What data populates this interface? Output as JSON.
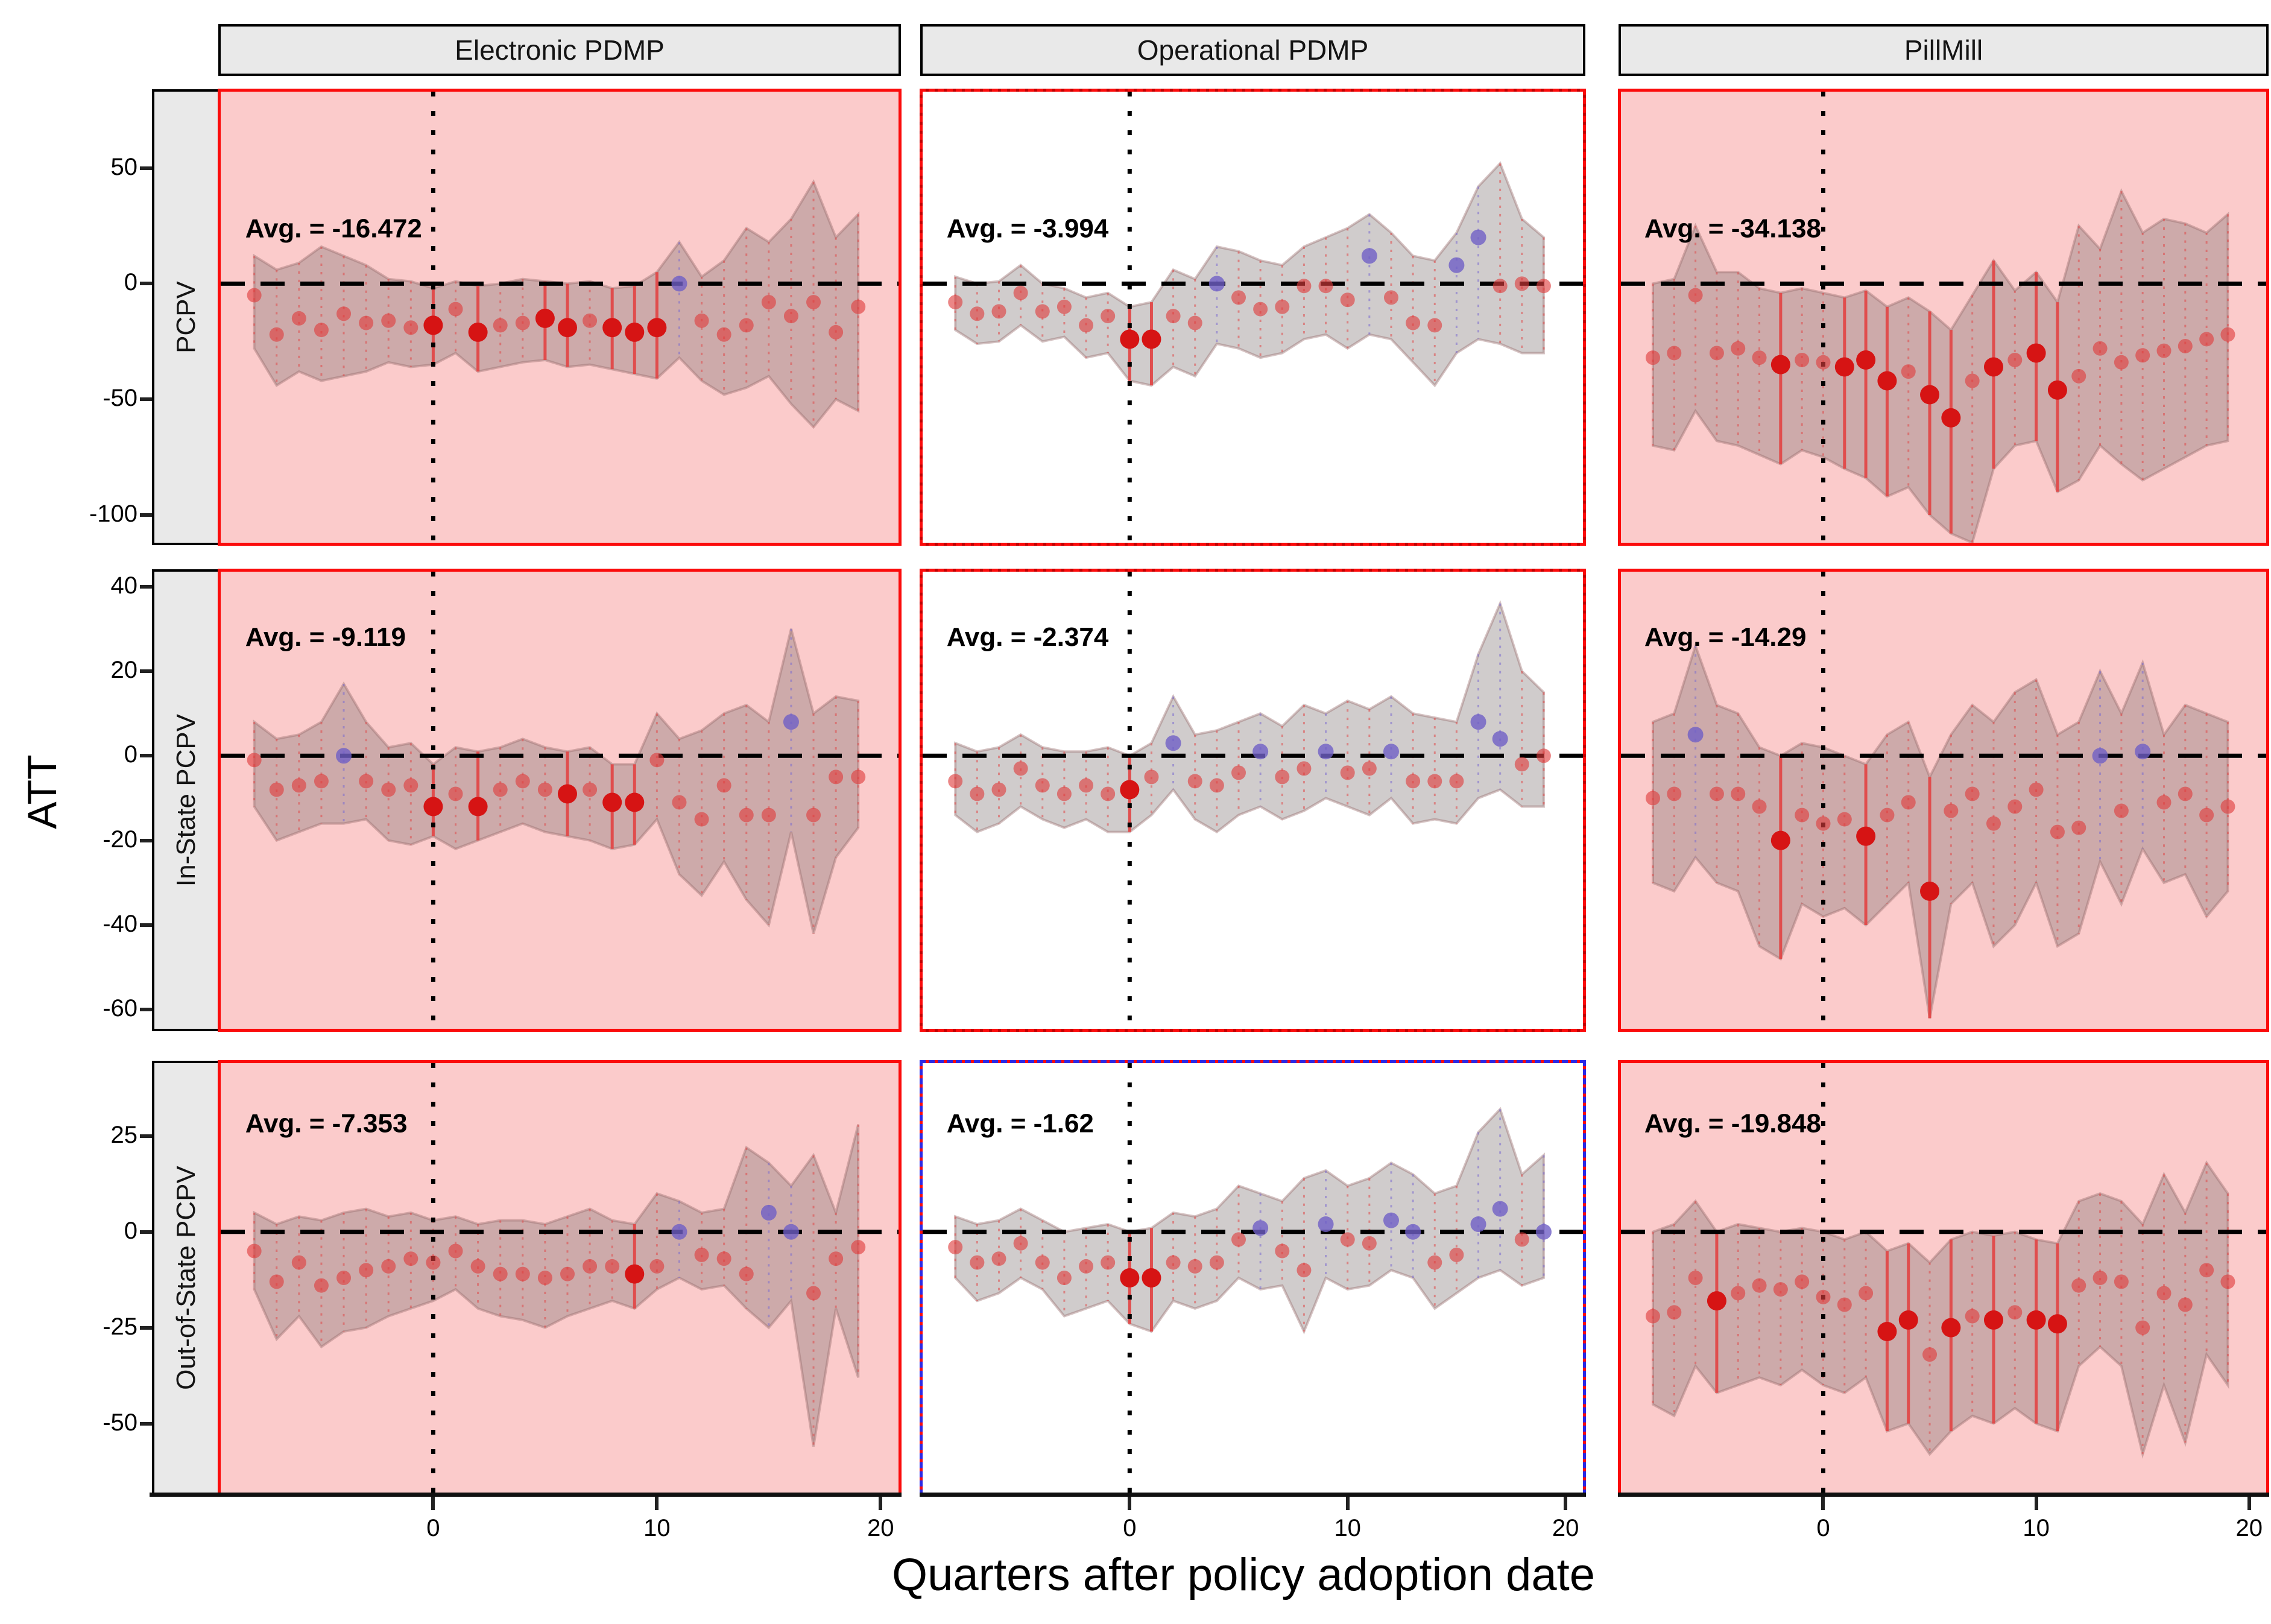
{
  "titles": {
    "y_axis": "ATT",
    "x_axis": "Quarters after policy adoption date"
  },
  "columns": [
    "Electronic PDMP",
    "Operational PDMP",
    "PillMill"
  ],
  "rows": [
    {
      "label": "PCPV",
      "ticks": [
        50,
        0,
        -50,
        -100
      ],
      "ylim": [
        -112,
        83
      ],
      "avg_y": 20
    },
    {
      "label": "In-State PCPV",
      "ticks": [
        40,
        20,
        0,
        -20,
        -40,
        -60
      ],
      "ylim": [
        -64.5,
        43.5
      ],
      "avg_y": 26
    },
    {
      "label": "Out-of-State PCPV",
      "ticks": [
        25,
        0,
        -25,
        -50
      ],
      "ylim": [
        -68,
        44
      ],
      "avg_y": 26
    }
  ],
  "x_ticks": [
    0,
    10,
    20
  ],
  "colors": {
    "panel_pink": "#FBCBCB",
    "panel_white": "#FFFFFF",
    "strip_gray": "#E9E9E9",
    "border_red": "#FB0B0B",
    "border_red_dark": "#C40000",
    "border_blue": "#2A2AE6",
    "band_fill": "rgba(120,110,110,0.35)",
    "band_stroke": "rgba(150,105,105,0.40)",
    "point_red": "#DF3B3B",
    "point_red_big": "#D61414",
    "point_blue": "#6F5FC6",
    "errbar_red": "#E04848",
    "errbar_blue": "#7A6AD0",
    "ref_line": "#000000"
  },
  "chart_data": {
    "type": "scatter",
    "description": "3x3 faceted event-study plot: ATT point estimates with confidence bands by policy (columns) and outcome (rows)",
    "xlabel": "Quarters after policy adoption date",
    "ylabel": "ATT",
    "x": [
      -8,
      -7,
      -6,
      -5,
      -4,
      -3,
      -2,
      -1,
      0,
      1,
      2,
      3,
      4,
      5,
      6,
      7,
      8,
      9,
      10,
      11,
      12,
      13,
      14,
      15,
      16,
      17,
      18,
      19
    ],
    "panels": [
      {
        "facet_row": "PCPV",
        "facet_col": "Electronic PDMP",
        "bg": "pink",
        "border": "solid-red",
        "avg_text": "Avg. = -16.472",
        "avg_value": -16.472,
        "att": [
          -5,
          -22,
          -15,
          -20,
          -13,
          -17,
          -16,
          -19,
          -18,
          -11,
          -21,
          -18,
          -17,
          -15,
          -19,
          -16,
          -19,
          -21,
          -19,
          0,
          -16,
          -22,
          -18,
          -8,
          -14,
          -8,
          -21,
          -10
        ],
        "ci_high": [
          12,
          6,
          9,
          16,
          12,
          8,
          2,
          1,
          -2,
          1,
          -1,
          0,
          2,
          1,
          0,
          1,
          -2,
          -1,
          5,
          18,
          3,
          10,
          24,
          18,
          28,
          44,
          20,
          30
        ],
        "ci_low": [
          -28,
          -44,
          -38,
          -42,
          -40,
          -38,
          -34,
          -36,
          -35,
          -30,
          -38,
          -36,
          -34,
          -33,
          -36,
          -35,
          -37,
          -39,
          -41,
          -32,
          -42,
          -48,
          -45,
          -40,
          -52,
          -62,
          -50,
          -55
        ],
        "blue_x": [
          11
        ],
        "solid_x": [
          0,
          2,
          5,
          6,
          8,
          9,
          10
        ]
      },
      {
        "facet_row": "PCPV",
        "facet_col": "Operational PDMP",
        "bg": "white",
        "border": "dashed-red",
        "avg_text": "Avg. = -3.994",
        "avg_value": -3.994,
        "att": [
          -8,
          -13,
          -12,
          -4,
          -12,
          -10,
          -18,
          -14,
          -24,
          -24,
          -14,
          -17,
          0,
          -6,
          -11,
          -10,
          -1,
          -1,
          -7,
          12,
          -6,
          -17,
          -18,
          8,
          20,
          -1,
          0,
          -1
        ],
        "ci_high": [
          3,
          0,
          1,
          8,
          0,
          -2,
          -6,
          -4,
          -10,
          -8,
          6,
          2,
          16,
          14,
          10,
          8,
          16,
          20,
          24,
          30,
          22,
          12,
          10,
          22,
          42,
          52,
          28,
          20
        ],
        "ci_low": [
          -20,
          -26,
          -25,
          -18,
          -25,
          -23,
          -32,
          -30,
          -42,
          -44,
          -36,
          -40,
          -26,
          -28,
          -32,
          -30,
          -24,
          -22,
          -28,
          -22,
          -24,
          -34,
          -44,
          -30,
          -24,
          -26,
          -30,
          -30
        ],
        "blue_x": [
          4,
          11,
          15,
          16
        ],
        "solid_x": [
          0,
          1
        ]
      },
      {
        "facet_row": "PCPV",
        "facet_col": "PillMill",
        "bg": "pink",
        "border": "solid-red",
        "avg_text": "Avg. = -34.138",
        "avg_value": -34.138,
        "att": [
          -32,
          -30,
          -5,
          -30,
          -28,
          -32,
          -35,
          -33,
          -34,
          -36,
          -33,
          -42,
          -38,
          -48,
          -58,
          -42,
          -36,
          -33,
          -30,
          -46,
          -40,
          -28,
          -34,
          -31,
          -29,
          -27,
          -24,
          -22
        ],
        "ci_high": [
          0,
          2,
          25,
          5,
          5,
          -2,
          -4,
          -2,
          -4,
          -6,
          -3,
          -10,
          -6,
          -12,
          -20,
          -5,
          10,
          -3,
          5,
          -8,
          25,
          15,
          40,
          22,
          28,
          26,
          22,
          30
        ],
        "ci_low": [
          -70,
          -72,
          -55,
          -68,
          -70,
          -74,
          -78,
          -72,
          -75,
          -80,
          -84,
          -92,
          -88,
          -100,
          -108,
          -112,
          -80,
          -70,
          -68,
          -90,
          -85,
          -70,
          -78,
          -85,
          -80,
          -75,
          -70,
          -68
        ],
        "blue_x": [],
        "solid_x": [
          -2,
          1,
          2,
          3,
          5,
          6,
          8,
          10,
          11
        ]
      },
      {
        "facet_row": "In-State PCPV",
        "facet_col": "Electronic PDMP",
        "bg": "pink",
        "border": "solid-red",
        "avg_text": "Avg. = -9.119",
        "avg_value": -9.119,
        "att": [
          -1,
          -8,
          -7,
          -6,
          0,
          -6,
          -8,
          -7,
          -12,
          -9,
          -12,
          -8,
          -6,
          -8,
          -9,
          -8,
          -11,
          -11,
          -1,
          -11,
          -15,
          -7,
          -14,
          -14,
          8,
          -14,
          -5,
          -5
        ],
        "ci_high": [
          8,
          4,
          5,
          8,
          17,
          8,
          2,
          3,
          -2,
          2,
          1,
          2,
          4,
          2,
          1,
          2,
          -2,
          -2,
          10,
          4,
          6,
          10,
          12,
          8,
          30,
          10,
          14,
          13
        ],
        "ci_low": [
          -12,
          -20,
          -18,
          -16,
          -16,
          -15,
          -20,
          -21,
          -19,
          -22,
          -20,
          -18,
          -16,
          -18,
          -19,
          -20,
          -22,
          -21,
          -15,
          -28,
          -33,
          -25,
          -34,
          -40,
          -18,
          -42,
          -24,
          -17
        ],
        "blue_x": [
          -4,
          16
        ],
        "solid_x": [
          0,
          2,
          6,
          8,
          9
        ]
      },
      {
        "facet_row": "In-State PCPV",
        "facet_col": "Operational PDMP",
        "bg": "white",
        "border": "dashed-red",
        "avg_text": "Avg. = -2.374",
        "avg_value": -2.374,
        "att": [
          -6,
          -9,
          -8,
          -3,
          -7,
          -9,
          -7,
          -9,
          -8,
          -5,
          3,
          -6,
          -7,
          -4,
          1,
          -5,
          -3,
          1,
          -4,
          -3,
          1,
          -6,
          -6,
          -6,
          8,
          4,
          -2,
          0
        ],
        "ci_high": [
          3,
          1,
          2,
          5,
          2,
          1,
          1,
          2,
          0,
          3,
          14,
          5,
          6,
          8,
          10,
          7,
          12,
          10,
          13,
          11,
          14,
          10,
          9,
          8,
          24,
          36,
          20,
          15
        ],
        "ci_low": [
          -14,
          -18,
          -16,
          -12,
          -15,
          -17,
          -15,
          -18,
          -18,
          -14,
          -8,
          -15,
          -18,
          -14,
          -12,
          -15,
          -13,
          -10,
          -12,
          -14,
          -10,
          -16,
          -15,
          -16,
          -10,
          -8,
          -12,
          -12
        ],
        "blue_x": [
          2,
          6,
          9,
          12,
          16,
          17
        ],
        "solid_x": [
          0
        ]
      },
      {
        "facet_row": "In-State PCPV",
        "facet_col": "PillMill",
        "bg": "pink",
        "border": "solid-red",
        "avg_text": "Avg. = -14.29",
        "avg_value": -14.29,
        "att": [
          -10,
          -9,
          5,
          -9,
          -9,
          -12,
          -20,
          -14,
          -16,
          -15,
          -19,
          -14,
          -11,
          -32,
          -13,
          -9,
          -16,
          -12,
          -8,
          -18,
          -17,
          0,
          -13,
          1,
          -11,
          -9,
          -14,
          -12
        ],
        "ci_high": [
          8,
          10,
          26,
          12,
          10,
          2,
          0,
          3,
          2,
          0,
          -2,
          5,
          8,
          -5,
          5,
          12,
          8,
          15,
          18,
          5,
          8,
          20,
          10,
          22,
          5,
          12,
          10,
          8
        ],
        "ci_low": [
          -30,
          -32,
          -24,
          -30,
          -32,
          -45,
          -48,
          -35,
          -38,
          -36,
          -40,
          -35,
          -30,
          -62,
          -35,
          -30,
          -45,
          -40,
          -30,
          -45,
          -42,
          -25,
          -35,
          -22,
          -30,
          -28,
          -38,
          -32
        ],
        "blue_x": [
          -6,
          13,
          15
        ],
        "solid_x": [
          -2,
          2,
          5
        ]
      },
      {
        "facet_row": "Out-of-State PCPV",
        "facet_col": "Electronic PDMP",
        "bg": "pink",
        "border": "solid-red",
        "avg_text": "Avg. = -7.353",
        "avg_value": -7.353,
        "att": [
          -5,
          -13,
          -8,
          -14,
          -12,
          -10,
          -9,
          -7,
          -8,
          -5,
          -9,
          -11,
          -11,
          -12,
          -11,
          -9,
          -9,
          -11,
          -9,
          0,
          -6,
          -7,
          -11,
          5,
          0,
          -16,
          -7,
          -4
        ],
        "ci_high": [
          5,
          2,
          4,
          3,
          5,
          6,
          4,
          5,
          3,
          4,
          2,
          3,
          3,
          2,
          4,
          6,
          3,
          2,
          10,
          8,
          5,
          6,
          22,
          18,
          12,
          20,
          5,
          28
        ],
        "ci_low": [
          -15,
          -28,
          -22,
          -30,
          -26,
          -25,
          -22,
          -20,
          -18,
          -15,
          -20,
          -22,
          -23,
          -25,
          -22,
          -20,
          -18,
          -20,
          -15,
          -12,
          -15,
          -14,
          -20,
          -25,
          -18,
          -56,
          -20,
          -38
        ],
        "blue_x": [
          11,
          15,
          16
        ],
        "solid_x": [
          9
        ]
      },
      {
        "facet_row": "Out-of-State PCPV",
        "facet_col": "Operational PDMP",
        "bg": "white",
        "border": "dashed-blue",
        "avg_text": "Avg. = -1.62",
        "avg_value": -1.62,
        "att": [
          -4,
          -8,
          -7,
          -3,
          -8,
          -12,
          -9,
          -8,
          -12,
          -12,
          -8,
          -9,
          -8,
          -2,
          1,
          -5,
          -10,
          2,
          -2,
          -3,
          3,
          0,
          -8,
          -6,
          2,
          6,
          -2,
          0
        ],
        "ci_high": [
          4,
          2,
          3,
          6,
          3,
          0,
          1,
          2,
          0,
          1,
          5,
          4,
          6,
          12,
          10,
          8,
          14,
          16,
          12,
          14,
          18,
          15,
          10,
          12,
          26,
          32,
          15,
          20
        ],
        "ci_low": [
          -12,
          -18,
          -16,
          -12,
          -15,
          -22,
          -20,
          -18,
          -24,
          -26,
          -18,
          -20,
          -18,
          -12,
          -15,
          -14,
          -26,
          -12,
          -15,
          -14,
          -10,
          -12,
          -20,
          -16,
          -12,
          -10,
          -14,
          -12
        ],
        "blue_x": [
          6,
          9,
          12,
          13,
          16,
          17,
          19
        ],
        "solid_x": [
          0,
          1
        ]
      },
      {
        "facet_row": "Out-of-State PCPV",
        "facet_col": "PillMill",
        "bg": "pink",
        "border": "solid-red",
        "avg_text": "Avg. = -19.848",
        "avg_value": -19.848,
        "att": [
          -22,
          -21,
          -12,
          -18,
          -16,
          -14,
          -15,
          -13,
          -17,
          -19,
          -16,
          -26,
          -23,
          -32,
          -25,
          -22,
          -23,
          -21,
          -23,
          -24,
          -14,
          -12,
          -13,
          -25,
          -16,
          -19,
          -10,
          -13
        ],
        "ci_high": [
          0,
          2,
          8,
          0,
          2,
          1,
          0,
          1,
          0,
          -2,
          0,
          -5,
          -3,
          -8,
          -2,
          0,
          -1,
          0,
          -2,
          -3,
          8,
          10,
          8,
          2,
          15,
          5,
          18,
          10
        ],
        "ci_low": [
          -45,
          -48,
          -35,
          -42,
          -40,
          -38,
          -40,
          -36,
          -40,
          -42,
          -38,
          -52,
          -50,
          -58,
          -52,
          -48,
          -50,
          -46,
          -50,
          -52,
          -35,
          -30,
          -35,
          -58,
          -40,
          -55,
          -32,
          -40
        ],
        "blue_x": [],
        "solid_x": [
          -5,
          3,
          4,
          6,
          8,
          10,
          11
        ]
      }
    ]
  }
}
